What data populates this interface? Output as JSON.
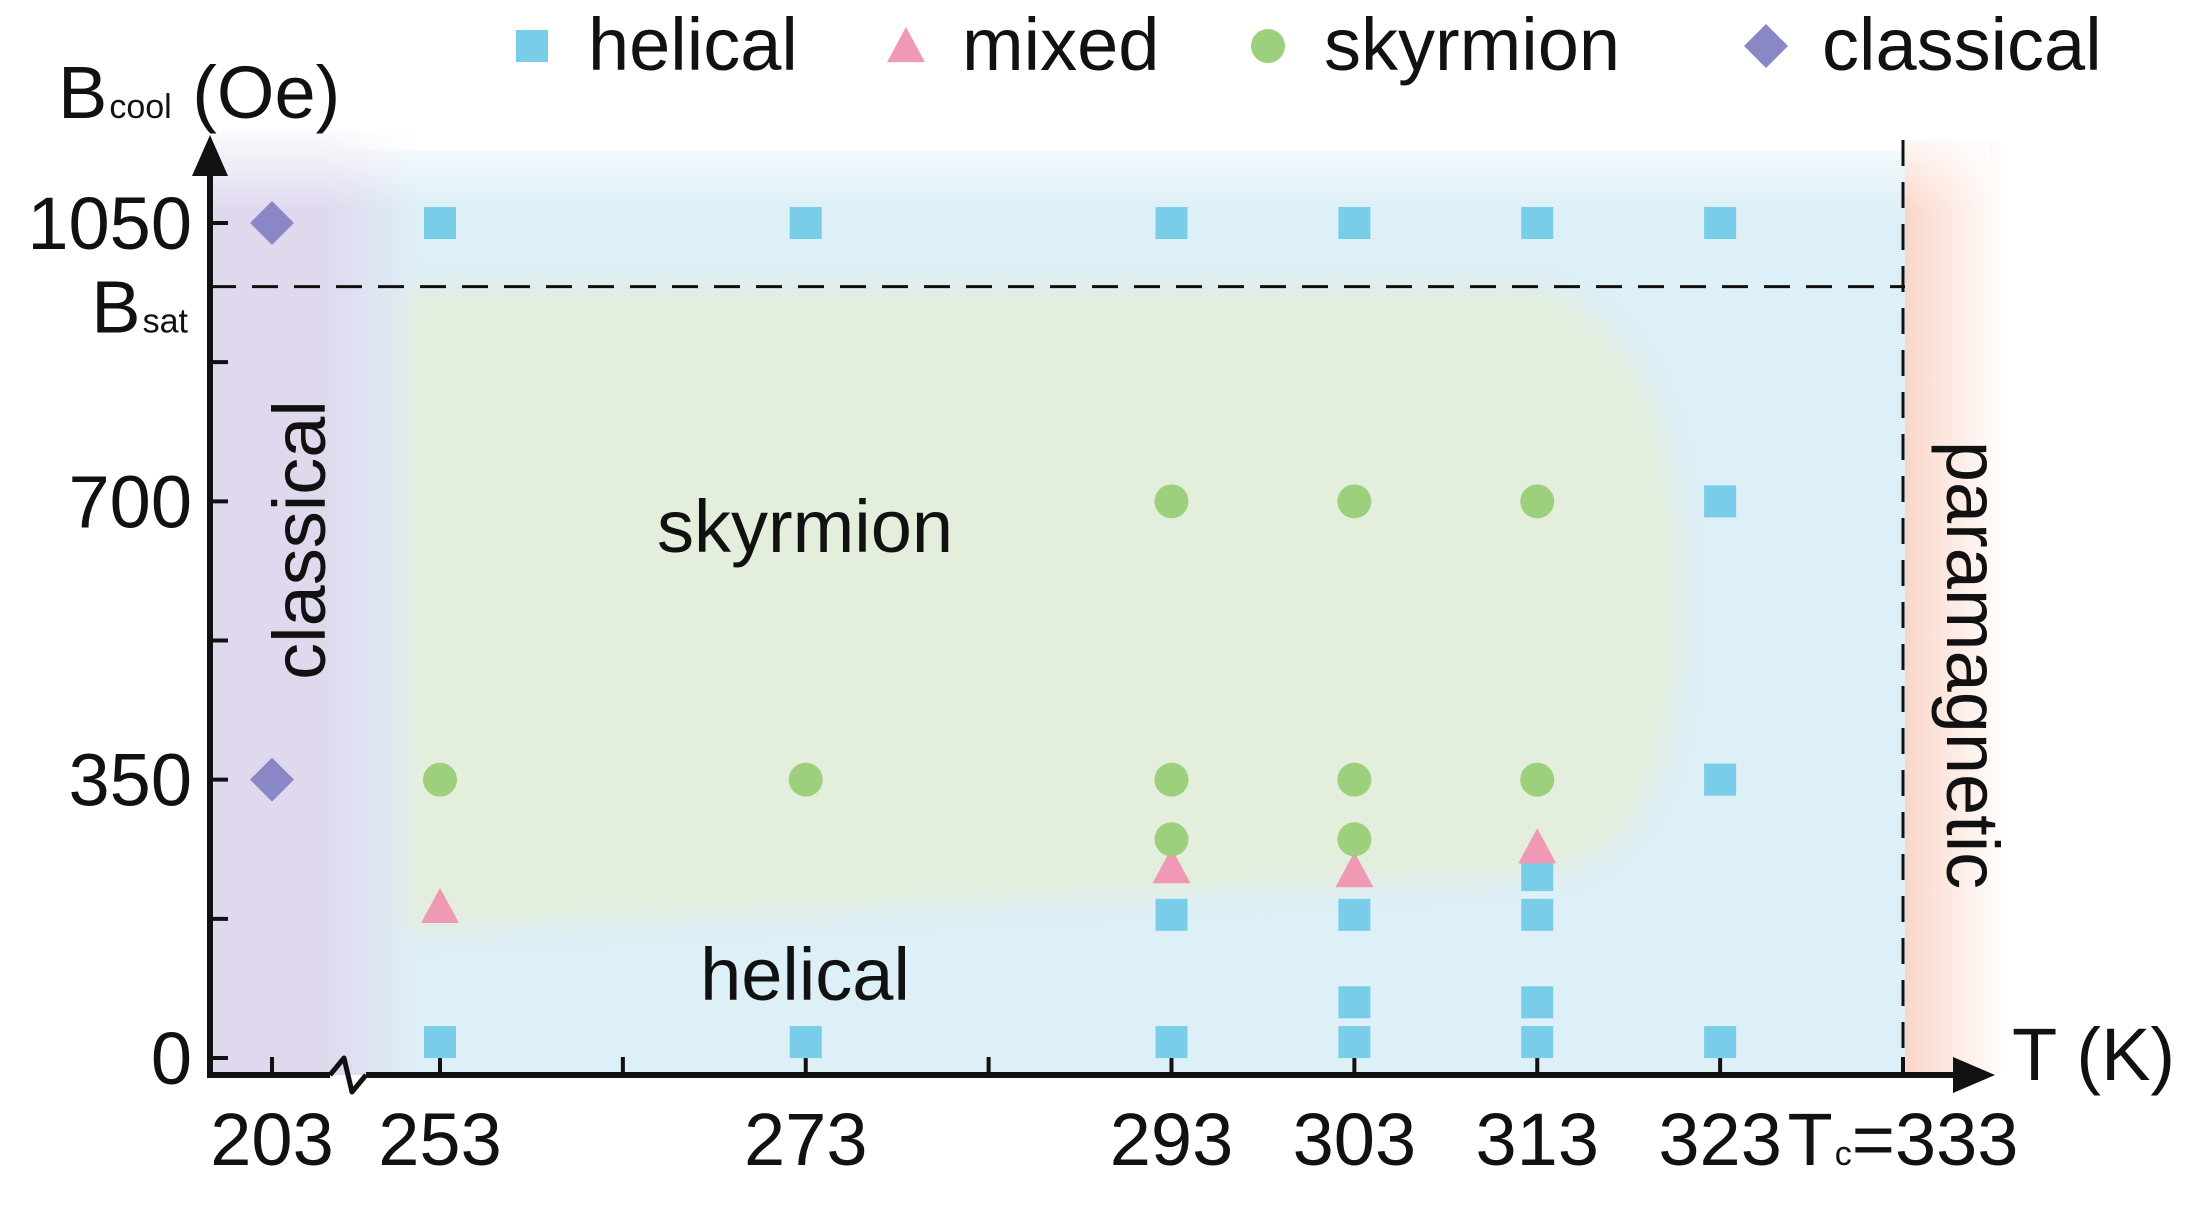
{
  "chart_data": {
    "type": "scatter",
    "title": "",
    "xlabel": "T (K)",
    "ylabel": {
      "main": "B",
      "sub": "cool",
      "unit": " (Oe)"
    },
    "x_ticks": [
      {
        "value": 203,
        "label": "203"
      },
      {
        "value": 253,
        "label": "253"
      },
      {
        "value": 273,
        "label": "273"
      },
      {
        "value": 293,
        "label": "293"
      },
      {
        "value": 303,
        "label": "303"
      },
      {
        "value": 313,
        "label": "313"
      },
      {
        "value": 323,
        "label": "323"
      },
      {
        "value": 333,
        "label_main": "T",
        "label_sub": "c",
        "label_rest": "=333"
      }
    ],
    "x_axis_break": "between 203 and 253",
    "y_ticks": [
      {
        "value": 0,
        "label": "0"
      },
      {
        "value": 350,
        "label": "350"
      },
      {
        "value": 700,
        "label": "700"
      },
      {
        "value": 1050,
        "label": "1050"
      }
    ],
    "y_reference": {
      "value": 970,
      "label_main": "B",
      "label_sub": "sat"
    },
    "xlim": [
      203,
      333
    ],
    "ylim": [
      0,
      1050
    ],
    "grid": false,
    "legend_position": "top",
    "series": [
      {
        "name": "helical",
        "marker": "square",
        "color": "#79cde8",
        "points": [
          [
            253,
            1050
          ],
          [
            273,
            1050
          ],
          [
            293,
            1050
          ],
          [
            303,
            1050
          ],
          [
            313,
            1050
          ],
          [
            323,
            1050
          ],
          [
            323,
            700
          ],
          [
            323,
            350
          ],
          [
            313,
            230
          ],
          [
            293,
            180
          ],
          [
            303,
            180
          ],
          [
            313,
            180
          ],
          [
            303,
            70
          ],
          [
            313,
            70
          ],
          [
            253,
            20
          ],
          [
            273,
            20
          ],
          [
            293,
            20
          ],
          [
            303,
            20
          ],
          [
            313,
            20
          ],
          [
            323,
            20
          ]
        ]
      },
      {
        "name": "mixed",
        "marker": "triangle",
        "color": "#ef99b5",
        "points": [
          [
            253,
            190
          ],
          [
            293,
            240
          ],
          [
            303,
            235
          ],
          [
            313,
            265
          ]
        ]
      },
      {
        "name": "skyrmion",
        "marker": "circle",
        "color": "#9cd07c",
        "points": [
          [
            253,
            350
          ],
          [
            273,
            350
          ],
          [
            293,
            700
          ],
          [
            303,
            700
          ],
          [
            313,
            700
          ],
          [
            293,
            350
          ],
          [
            303,
            350
          ],
          [
            313,
            350
          ],
          [
            293,
            275
          ],
          [
            303,
            275
          ]
        ]
      },
      {
        "name": "classical",
        "marker": "diamond",
        "color": "#8a87c6",
        "points": [
          [
            203,
            1050
          ],
          [
            203,
            350
          ]
        ]
      }
    ],
    "regions": [
      {
        "name": "classical",
        "label": "classical",
        "color": "#e3dcef"
      },
      {
        "name": "helical",
        "label": "helical",
        "color": "#ddeff7"
      },
      {
        "name": "skyrmion",
        "label": "skyrmion",
        "color": "#e4eedc"
      },
      {
        "name": "paramagnetic",
        "label": "paramagnetic",
        "color": "#fbdcd3"
      }
    ]
  }
}
